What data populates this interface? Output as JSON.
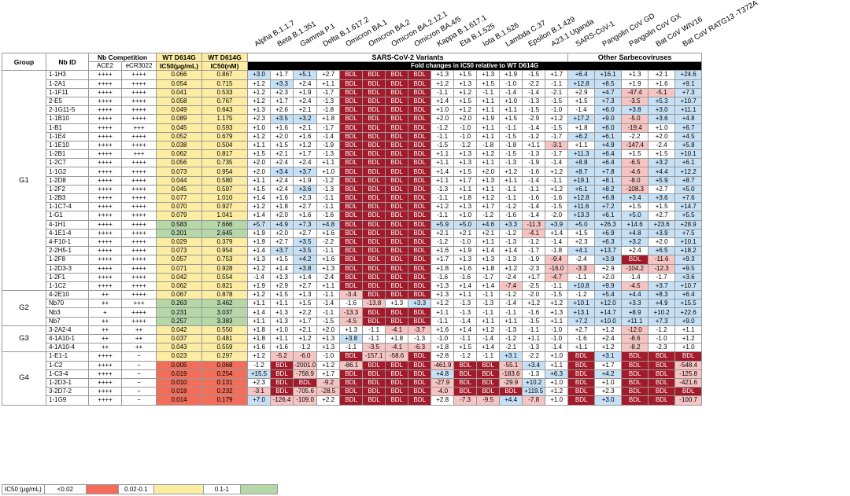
{
  "column_headers": {
    "group": "Group",
    "nb_id": "Nb ID",
    "nb_competition": "Nb Competition",
    "ace2": "ACE2",
    "ecr3022": "eCR3022",
    "ic50_ug_line1": "WT D614G",
    "ic50_ug_line2": "IC50(μg/mL)",
    "ic50_nm_line1": "WT D614G",
    "ic50_nm_line2": "IC50(nM)",
    "sars2_variants": "SARS-CoV-2 Variants",
    "fold_changes": "Fold changes in IC50 relative to WT D614G",
    "other_sarbeco": "Other Sarbecoviruses"
  },
  "variant_labels": [
    "Alpha B.1.1.7",
    "Beta B.1.351",
    "Gamma P.1",
    "Delta B.1.617.2",
    "Omicron BA.1",
    "Omicron BA.2",
    "Omicron BA.2.12.1",
    "Omicron BA.4/5",
    "Kappa B.1.617.1",
    "Eta B.1.525",
    "Iota B.1.526",
    "Lambda C.37",
    "Epsilon B.1.429",
    "A23.1 Uganda",
    "SARS-CoV-1",
    "Pangolin CoV GD",
    "Pangolin CoV GX",
    "Bat CoV WIV16",
    "Bat CoV RATG13 -T372A"
  ],
  "groups": [
    {
      "name": "G1",
      "rows": [
        [
          "1-1H3",
          "++++",
          "++++",
          "0.066",
          "0.867",
          "+3.0",
          "+1.7",
          "+5.1",
          "+2.7",
          "BDL",
          "BDL",
          "BDL",
          "BDL",
          "+1.3",
          "+1.5",
          "+1.3",
          "+1.9",
          "-1.5",
          "+1.7",
          "+6.4",
          "+16.1",
          "+1.3",
          "+2.1",
          "+24.6"
        ],
        [
          "1-2A1",
          "++++",
          "++++",
          "0.054",
          "0.715",
          "+1.2",
          "+3.3",
          "+2.4",
          "+1.1",
          "BDL",
          "BDL",
          "BDL",
          "BDL",
          "+1.2",
          "+1.3",
          "+1.5",
          "-1.0",
          "-2.2",
          "-1.1",
          "+12.8",
          "+8.5",
          "+1.9",
          "+1.6",
          "+9.1"
        ],
        [
          "1-1F11",
          "++++",
          "++++",
          "0.041",
          "0.533",
          "+1.2",
          "+2.3",
          "+1.9",
          "-1.7",
          "BDL",
          "BDL",
          "BDL",
          "BDL",
          "-1.1",
          "+1.2",
          "-1.1",
          "-1.4",
          "-1.4",
          "-2.1",
          "+2.9",
          "+4.7",
          "-47.4",
          "-5.1",
          "+7.3"
        ],
        [
          "2-E5",
          "++++",
          "++++",
          "0.058",
          "0.767",
          "+1.2",
          "+1.7",
          "+2.4",
          "-1.3",
          "BDL",
          "BDL",
          "BDL",
          "BDL",
          "+1.4",
          "+1.5",
          "+1.1",
          "+1.0",
          "-1.3",
          "-1.5",
          "+1.5",
          "+7.3",
          "-3.5",
          "+5.3",
          "+10.7"
        ],
        [
          "2-1G11-5",
          "++++",
          "++++",
          "0.049",
          "0.643",
          "+1.3",
          "+2.6",
          "+2.1",
          "-1.8",
          "BDL",
          "BDL",
          "BDL",
          "BDL",
          "+1.0",
          "+1.2",
          "+1.1",
          "+1.1",
          "-1.5",
          "-1.0",
          "-1.4",
          "+6.0",
          "+3.8",
          "+3.0",
          "+11.1"
        ],
        [
          "1-1B10",
          "++++",
          "++++",
          "0.089",
          "1.175",
          "+2.3",
          "+3.5",
          "+3.2",
          "+1.8",
          "BDL",
          "BDL",
          "BDL",
          "BDL",
          "+2.0",
          "+2.0",
          "+1.9",
          "+1.5",
          "-2.9",
          "+1.2",
          "+17.2",
          "+9.0",
          "-5.0",
          "+3.6",
          "+4.8"
        ],
        [
          "1-B1",
          "++++",
          "+++",
          "0.045",
          "0.593",
          "+1.0",
          "+1.6",
          "+2.1",
          "-1.7",
          "BDL",
          "BDL",
          "BDL",
          "BDL",
          "-1.2",
          "-1.0",
          "+1.1",
          "-1.1",
          "-1.4",
          "-1.5",
          "+1.8",
          "+6.0",
          "-19.4",
          "+1.0",
          "+6.7"
        ],
        [
          "1-1E4",
          "++++",
          "++++",
          "0.052",
          "0.679",
          "+1.2",
          "+2.0",
          "+1.6",
          "-1.4",
          "BDL",
          "BDL",
          "BDL",
          "BDL",
          "-1.1",
          "-1.0",
          "+1.1",
          "-1.5",
          "-1.2",
          "-1.7",
          "+6.2",
          "+6.1",
          "-2.2",
          "+2.0",
          "+4.5"
        ],
        [
          "1-1E10",
          "++++",
          "++++",
          "0.038",
          "0.504",
          "+1.1",
          "+1.5",
          "+1.2",
          "-1.9",
          "BDL",
          "BDL",
          "BDL",
          "BDL",
          "-1.5",
          "-1.2",
          "-1.8",
          "-1.8",
          "+1.1",
          "-3.1",
          "+1.1",
          "+4.9",
          "-147.4",
          "-2.4",
          "+5.8"
        ],
        [
          "1-2B1",
          "++++",
          "+++",
          "0.062",
          "0.817",
          "+1.5",
          "+2.1",
          "+1.7",
          "-1.3",
          "BDL",
          "BDL",
          "BDL",
          "BDL",
          "+1.1",
          "+1.3",
          "+1.2",
          "-1.5",
          "-1.3",
          "-1.7",
          "+11.3",
          "+6.4",
          "+1.5",
          "+1.5",
          "+10.1"
        ],
        [
          "1-2C7",
          "++++",
          "++++",
          "0.056",
          "0.735",
          "+2.0",
          "+2.4",
          "+2.4",
          "+1.1",
          "BDL",
          "BDL",
          "BDL",
          "BDL",
          "+1.1",
          "+1.3",
          "+1.1",
          "-1.3",
          "-1.9",
          "-1.4",
          "+8.8",
          "+6.4",
          "-6.5",
          "+3.2",
          "+6.1"
        ],
        [
          "1-1G2",
          "++++",
          "++++",
          "0.073",
          "0.954",
          "+2.0",
          "+3.4",
          "+3.7",
          "+1.0",
          "BDL",
          "BDL",
          "BDL",
          "BDL",
          "+1.4",
          "+1.5",
          "+2.0",
          "+1.2",
          "-1.6",
          "+1.2",
          "+8.7",
          "+7.8",
          "-4.6",
          "+4.4",
          "+12.2"
        ],
        [
          "1-2D8",
          "++++",
          "++++",
          "0.044",
          "0.580",
          "+1.1",
          "+2.4",
          "+1.9",
          "-1.2",
          "BDL",
          "BDL",
          "BDL",
          "BDL",
          "+1.1",
          "+1.7",
          "+1.3",
          "+1.1",
          "-1.4",
          "-1.1",
          "+19.1",
          "+8.1",
          "-8.0",
          "+5.9",
          "+8.7"
        ],
        [
          "1-2F2",
          "++++",
          "++++",
          "0.045",
          "0.597",
          "+1.5",
          "+2.4",
          "+3.6",
          "-1.3",
          "BDL",
          "BDL",
          "BDL",
          "BDL",
          "-1.3",
          "+1.1",
          "+1.1",
          "-1.1",
          "-1.1",
          "+1.2",
          "+6.1",
          "+8.2",
          "-108.3",
          "+2.7",
          "+5.0"
        ],
        [
          "1-2B3",
          "++++",
          "++++",
          "0.077",
          "1.010",
          "+1.4",
          "+1.6",
          "+2.3",
          "-1.1",
          "BDL",
          "BDL",
          "BDL",
          "BDL",
          "-1.1",
          "+1.8",
          "+1.2",
          "-1.1",
          "-1.6",
          "-1.6",
          "+12.8",
          "+6.8",
          "+3.4",
          "+3.6",
          "+7.6"
        ],
        [
          "1-1C7-4",
          "++++",
          "++++",
          "0.070",
          "0.927",
          "+1.2",
          "+1.8",
          "+2.7",
          "-1.1",
          "BDL",
          "BDL",
          "BDL",
          "BDL",
          "+1.2",
          "+1.3",
          "+1.7",
          "-1.2",
          "-1.4",
          "-1.5",
          "+11.6",
          "+7.2",
          "+1.5",
          "+1.5",
          "+14.7"
        ],
        [
          "1-G1",
          "++++",
          "++++",
          "0.079",
          "1.041",
          "+1.4",
          "+2.0",
          "+1.6",
          "-1.6",
          "BDL",
          "BDL",
          "BDL",
          "BDL",
          "-1.1",
          "+1.0",
          "-1.2",
          "-1.6",
          "-1.4",
          "-2.0",
          "+13.3",
          "+6.1",
          "+5.0",
          "+2.7",
          "+5.5"
        ],
        [
          "4-1H1",
          "++++",
          "++++",
          "0.583",
          "7.666",
          "+5.7",
          "+4.9",
          "+7.3",
          "+4.8",
          "BDL",
          "BDL",
          "BDL",
          "BDL",
          "+5.9",
          "+5.0",
          "+4.6",
          "+3.3",
          "-11.3",
          "+3.9",
          "+5.0",
          "+26.3",
          "+14.6",
          "+23.6",
          "+28.9"
        ],
        [
          "4-1E1-4",
          "++++",
          "++++",
          "0.201",
          "2.645",
          "+1.9",
          "+2.0",
          "+2.7",
          "+1.6",
          "BDL",
          "BDL",
          "BDL",
          "BDL",
          "+2.1",
          "+2.1",
          "+2.1",
          "-1.2",
          "-4.1",
          "+1.4",
          "+1.5",
          "+6.9",
          "+4.8",
          "+3.9",
          "+7.5"
        ],
        [
          "4-F10-1",
          "++++",
          "++++",
          "0.029",
          "0.379",
          "+1.9",
          "+2.7",
          "+3.5",
          "-2.2",
          "BDL",
          "BDL",
          "BDL",
          "BDL",
          "-1.2",
          "-1.0",
          "+1.1",
          "-1.3",
          "-1.2",
          "-1.4",
          "+2.3",
          "+6.3",
          "+3.2",
          "+2.0",
          "+10.1"
        ],
        [
          "2-2H5-1",
          "++++",
          "++++",
          "0.073",
          "0.954",
          "+1.4",
          "+3.7",
          "+3.5",
          "-1.1",
          "BDL",
          "BDL",
          "BDL",
          "BDL",
          "+1.6",
          "+1.9",
          "+1.4",
          "+1.4",
          "-1.7",
          "-1.8",
          "+4.1",
          "+13.7",
          "+2.4",
          "+6.5",
          "+18.2"
        ],
        [
          "1-2F8",
          "++++",
          "++++",
          "0.057",
          "0.753",
          "+1.3",
          "+1.5",
          "+4.2",
          "+1.6",
          "BDL",
          "BDL",
          "BDL",
          "BDL",
          "+1.7",
          "+1.3",
          "+1.3",
          "-1.3",
          "-1.9",
          "-9.4",
          "-2.4",
          "+3.9",
          "BDL",
          "-11.6",
          "+9.3"
        ],
        [
          "1-2D3-3",
          "++++",
          "++++",
          "0.071",
          "0.928",
          "+1.2",
          "+1.4",
          "+3.8",
          "+1.3",
          "BDL",
          "BDL",
          "BDL",
          "BDL",
          "+1.8",
          "+1.6",
          "+1.8",
          "+1.2",
          "-2.3",
          "-16.0",
          "-3.3",
          "+2.9",
          "-104.2",
          "-12.3",
          "+9.5"
        ],
        [
          "1-2F1",
          "++++",
          "++++",
          "0.042",
          "0.554",
          "-1.4",
          "+1.3",
          "+1.4",
          "-2.4",
          "BDL",
          "BDL",
          "BDL",
          "BDL",
          "-1.6",
          "-1.6",
          "-1.7",
          "-2.4",
          "+1.7",
          "-4.7",
          "-1.1",
          "+2.0",
          "-1.4",
          "-1.7",
          "+3.6"
        ],
        [
          "1-1C2",
          "++++",
          "++++",
          "0.062",
          "0.821",
          "+1.9",
          "+2.9",
          "+2.7",
          "+1.1",
          "BDL",
          "BDL",
          "BDL",
          "BDL",
          "+1.3",
          "+1.4",
          "+1.4",
          "-7.4",
          "-2.5",
          "-1.1",
          "+10.8",
          "+9.9",
          "-4.5",
          "+3.7",
          "+10.7"
        ]
      ]
    },
    {
      "name": "G2",
      "rows": [
        [
          "4-2E10",
          "++",
          "++++",
          "0.067",
          "0.878",
          "+1.2",
          "+1.5",
          "+1.3",
          "-1.1",
          "-3.4",
          "BDL",
          "BDL",
          "BDL",
          "+1.3",
          "+1.1",
          "-1.1",
          "-1.2",
          "-2.0",
          "-1.5",
          "-1.2",
          "+5.4",
          "+4.4",
          "+8.3",
          "+6.4"
        ],
        [
          "Nb70",
          "++",
          "+++",
          "0.263",
          "3.462",
          "+1.1",
          "+1.1",
          "+1.5",
          "-1.4",
          "-1.6",
          "-13.8",
          "+1.3",
          "+3.3",
          "+1.2",
          "-1.3",
          "-1.3",
          "-1.4",
          "+1.2",
          "+1.2",
          "+10.1",
          "+12.0",
          "+3.3",
          "+4.9",
          "+15.5"
        ],
        [
          "Nb3",
          "+",
          "++++",
          "0.231",
          "3.037",
          "+1.4",
          "+1.3",
          "+2.2",
          "-1.1",
          "-13.3",
          "BDL",
          "BDL",
          "BDL",
          "+1.1",
          "-1.3",
          "-1.1",
          "-1.1",
          "-1.6",
          "+1.3",
          "+13.1",
          "+14.7",
          "+8.9",
          "+10.2",
          "+22.6"
        ],
        [
          "Nb7",
          "++",
          "++++",
          "0.257",
          "3.383",
          "+1.1",
          "+1.3",
          "+1.7",
          "-1.5",
          "-4.5",
          "BDL",
          "BDL",
          "BDL",
          "-1.1",
          "-1.4",
          "+1.1",
          "+1.1",
          "-1.5",
          "+1.1",
          "+7.2",
          "+10.0",
          "+11.1",
          "+7.3",
          "+9.0"
        ]
      ]
    },
    {
      "name": "G3",
      "rows": [
        [
          "3-2A2-4",
          "++",
          "++",
          "0.042",
          "0.550",
          "+1.8",
          "+1.0",
          "+2.1",
          "+2.0",
          "+1.3",
          "-1.1",
          "-4.1",
          "-3.7",
          "+1.6",
          "+1.4",
          "+1.2",
          "-1.3",
          "-1.1",
          "-1.0",
          "+2.7",
          "+1.2",
          "-12.0",
          "-1.2",
          "+1.1"
        ],
        [
          "4-1A10-1",
          "++",
          "++",
          "0.037",
          "0.481",
          "+1.8",
          "+1.1",
          "+1.2",
          "+1.3",
          "+3.8",
          "-1.1",
          "+1.8",
          "-1.3",
          "-1.0",
          "-1.1",
          "-1.4",
          "-1.2",
          "+1.1",
          "-1.0",
          "-1.6",
          "+2.4",
          "-8.6",
          "-1.0",
          "+1.2"
        ],
        [
          "4-1A10-4",
          "++",
          "++",
          "0.043",
          "0.559",
          "+1.6",
          "+1.6",
          "-1.2",
          "+1.3",
          "-1.1",
          "-3.5",
          "-4.1",
          "-6.3",
          "+1.8",
          "+1.5",
          "+1.4",
          "-2.1",
          "-1.3",
          "-1.4",
          "+1.1",
          "+1.2",
          "-8.2",
          "-2.3",
          "+1.0"
        ]
      ]
    },
    {
      "name": "G4",
      "rows": [
        [
          "1-E1-1",
          "++++",
          "−",
          "0.023",
          "0.297",
          "+1.2",
          "-5.2",
          "-6.0",
          "-1.0",
          "BDL",
          "-157.1",
          "-58.6",
          "BDL",
          "+2.8",
          "-1.2",
          "-1.1",
          "+3.1",
          "-2.2",
          "+1.0",
          "BDL",
          "+3.1",
          "BDL",
          "BDL",
          "BDL"
        ],
        [
          "1-C2",
          "++++",
          "−",
          "0.005",
          "0.068",
          "-1.2",
          "BDL",
          "-2001.0",
          "+1.2",
          "-86.1",
          "BDL",
          "BDL",
          "BDL",
          "-461.9",
          "BDL",
          "BDL",
          "-55.1",
          "+3.4",
          "+1.1",
          "BDL",
          "+1.7",
          "BDL",
          "BDL",
          "-548.4"
        ],
        [
          "1-C3-4",
          "++++",
          "−",
          "0.019",
          "0.254",
          "+15.5",
          "BDL",
          "-758.9",
          "+1.7",
          "BDL",
          "BDL",
          "BDL",
          "BDL",
          "+4.8",
          "BDL",
          "BDL",
          "-183.6",
          "-1.3",
          "+6.3",
          "BDL",
          "+4.2",
          "BDL",
          "BDL",
          "-125.8"
        ],
        [
          "1-2D3-1",
          "++++",
          "−",
          "0.010",
          "0.131",
          "+2.3",
          "BDL",
          "BDL",
          "-9.2",
          "BDL",
          "BDL",
          "BDL",
          "BDL",
          "-27.9",
          "BDL",
          "BDL",
          "-29.9",
          "+10.2",
          "+1.0",
          "BDL",
          "+1.0",
          "BDL",
          "BDL",
          "-421.6"
        ],
        [
          "3-2D7-2",
          "++++",
          "−",
          "0.018",
          "0.232",
          "-3.1",
          "BDL",
          "-705.6",
          "-28.5",
          "BDL",
          "BDL",
          "BDL",
          "BDL",
          "-4.0",
          "BDL",
          "BDL",
          "BDL",
          "+119.5",
          "+1.2",
          "BDL",
          "+2.3",
          "BDL",
          "BDL",
          "BDL"
        ],
        [
          "1-1G9",
          "++++",
          "−",
          "0.014",
          "0.179",
          "+7.0",
          "-126.4",
          "-109.0",
          "+2.2",
          "BDL",
          "BDL",
          "BDL",
          "BDL",
          "+2.8",
          "-7.3",
          "-9.5",
          "+4.4",
          "-7.8",
          "+1.0",
          "BDL",
          "+3.0",
          "BDL",
          "BDL",
          "-100.7"
        ]
      ]
    }
  ],
  "legend": {
    "title": "IC50 (μg/mL)",
    "bins": [
      "<0.02",
      "0.02-0.1",
      "0.1-1"
    ]
  },
  "colors": {
    "bdl": "#a31a2a",
    "increase": "#c6e1f6",
    "decrease": "#f6c5c3",
    "ic50_low": "#f26d5a",
    "ic50_mid": "#fdeda2",
    "ic50_high": "#b6d7a8"
  }
}
